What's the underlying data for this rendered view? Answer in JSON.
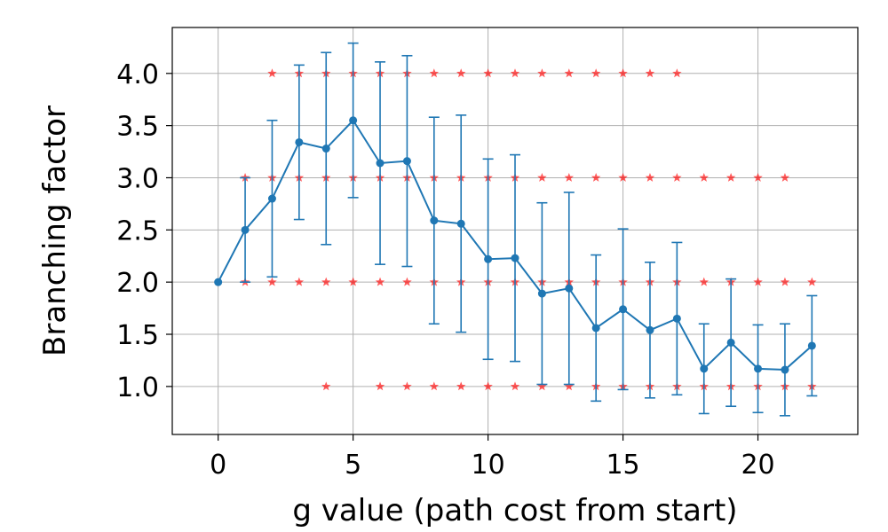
{
  "chart_data": {
    "type": "line",
    "title": "",
    "xlabel": "g value (path cost from start)",
    "ylabel": "Branching factor",
    "xlim": [
      -1.7,
      23.7
    ],
    "ylim": [
      0.54,
      4.44
    ],
    "xticks": [
      0,
      5,
      10,
      15,
      20
    ],
    "yticks": [
      1.0,
      1.5,
      2.0,
      2.5,
      3.0,
      3.5,
      4.0
    ],
    "ytick_labels": [
      "1.0",
      "1.5",
      "2.0",
      "2.5",
      "3.0",
      "3.5",
      "4.0"
    ],
    "grid": true,
    "legend": "none",
    "series": [
      {
        "kind": "mean-with-error-bars",
        "color": "#1f77b4",
        "x": [
          0,
          1,
          2,
          3,
          4,
          5,
          6,
          7,
          8,
          9,
          10,
          11,
          12,
          13,
          14,
          15,
          16,
          17,
          18,
          19,
          20,
          21,
          22
        ],
        "y": [
          2.0,
          2.5,
          2.8,
          3.34,
          3.28,
          3.55,
          3.14,
          3.16,
          2.59,
          2.56,
          2.22,
          2.23,
          1.89,
          1.94,
          1.56,
          1.74,
          1.54,
          1.65,
          1.17,
          1.42,
          1.17,
          1.16,
          1.39
        ],
        "err": [
          0,
          0.5,
          0.75,
          0.74,
          0.92,
          0.74,
          0.97,
          1.01,
          0.99,
          1.04,
          0.96,
          0.99,
          0.87,
          0.92,
          0.7,
          0.77,
          0.65,
          0.73,
          0.43,
          0.61,
          0.42,
          0.44,
          0.48
        ]
      },
      {
        "kind": "samples",
        "color": "#ff0000",
        "marker": "star",
        "points": [
          [
            1,
            2
          ],
          [
            1,
            3
          ],
          [
            2,
            2
          ],
          [
            2,
            3
          ],
          [
            2,
            4
          ],
          [
            3,
            2
          ],
          [
            3,
            3
          ],
          [
            3,
            4
          ],
          [
            4,
            1
          ],
          [
            4,
            2
          ],
          [
            4,
            3
          ],
          [
            4,
            4
          ],
          [
            5,
            2
          ],
          [
            5,
            3
          ],
          [
            5,
            4
          ],
          [
            6,
            1
          ],
          [
            6,
            2
          ],
          [
            6,
            3
          ],
          [
            6,
            4
          ],
          [
            7,
            1
          ],
          [
            7,
            2
          ],
          [
            7,
            3
          ],
          [
            7,
            4
          ],
          [
            8,
            1
          ],
          [
            8,
            2
          ],
          [
            8,
            3
          ],
          [
            8,
            4
          ],
          [
            9,
            1
          ],
          [
            9,
            2
          ],
          [
            9,
            3
          ],
          [
            9,
            4
          ],
          [
            10,
            1
          ],
          [
            10,
            2
          ],
          [
            10,
            3
          ],
          [
            10,
            4
          ],
          [
            11,
            1
          ],
          [
            11,
            2
          ],
          [
            11,
            3
          ],
          [
            11,
            4
          ],
          [
            12,
            1
          ],
          [
            12,
            2
          ],
          [
            12,
            3
          ],
          [
            12,
            4
          ],
          [
            13,
            1
          ],
          [
            13,
            2
          ],
          [
            13,
            3
          ],
          [
            13,
            4
          ],
          [
            14,
            1
          ],
          [
            14,
            2
          ],
          [
            14,
            3
          ],
          [
            14,
            4
          ],
          [
            15,
            1
          ],
          [
            15,
            2
          ],
          [
            15,
            3
          ],
          [
            15,
            4
          ],
          [
            16,
            1
          ],
          [
            16,
            2
          ],
          [
            16,
            3
          ],
          [
            16,
            4
          ],
          [
            17,
            1
          ],
          [
            17,
            2
          ],
          [
            17,
            3
          ],
          [
            17,
            4
          ],
          [
            18,
            1
          ],
          [
            18,
            2
          ],
          [
            18,
            3
          ],
          [
            19,
            1
          ],
          [
            19,
            2
          ],
          [
            19,
            3
          ],
          [
            20,
            1
          ],
          [
            20,
            2
          ],
          [
            20,
            3
          ],
          [
            21,
            1
          ],
          [
            21,
            2
          ],
          [
            21,
            3
          ],
          [
            22,
            1
          ],
          [
            22,
            2
          ]
        ]
      }
    ]
  }
}
